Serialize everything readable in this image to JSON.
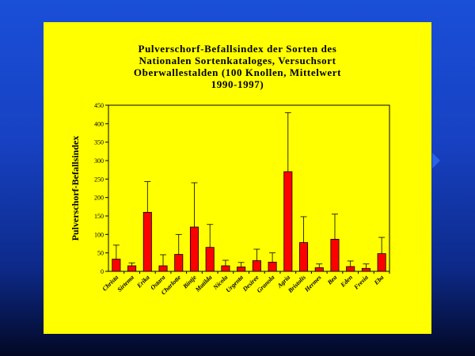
{
  "chart_data": {
    "type": "bar",
    "title_lines": [
      "Pulverschorf-Befallsindex der Sorten des",
      "Nationalen Sortenkataloges, Versuchsort",
      "Oberwallestalden (100 Knollen, Mittelwert",
      "1990-1997)"
    ],
    "xlabel": "",
    "ylabel": "Pulverschorf-Befallsindex",
    "ylim": [
      0,
      450
    ],
    "yticks": [
      "0",
      "50",
      "100",
      "150",
      "200",
      "250",
      "300",
      "350",
      "400",
      "450"
    ],
    "categories": [
      "Christa",
      "Sirtema",
      "Erika",
      "Ostara",
      "Charlotte",
      "Bintje",
      "Matilda",
      "Nicola",
      "Urgenta",
      "Desiree",
      "Granola",
      "Agria",
      "Bristolis",
      "Hermes",
      "Bea",
      "Eden",
      "Fresia",
      "Eba"
    ],
    "series": [
      {
        "values": [
          33,
          15,
          160,
          15,
          46,
          120,
          65,
          15,
          12,
          29,
          25,
          270,
          78,
          10,
          87,
          13,
          8,
          48
        ],
        "errors": [
          38,
          8,
          83,
          30,
          54,
          120,
          62,
          15,
          12,
          31,
          25,
          160,
          70,
          10,
          68,
          15,
          12,
          44
        ]
      }
    ],
    "grid": false,
    "legend": "none"
  },
  "colors": {
    "page_background": "#1741c2",
    "panel": "#ffff00",
    "bar": "#ff0000",
    "axis": "#000000"
  }
}
